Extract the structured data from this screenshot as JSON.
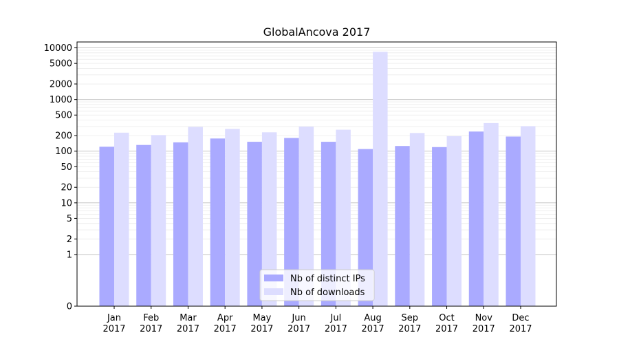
{
  "chart_data": {
    "type": "bar",
    "title": "GlobalAncova 2017",
    "xlabel": "",
    "ylabel": "",
    "scale": "symlog",
    "categories": [
      [
        "Jan",
        "2017"
      ],
      [
        "Feb",
        "2017"
      ],
      [
        "Mar",
        "2017"
      ],
      [
        "Apr",
        "2017"
      ],
      [
        "May",
        "2017"
      ],
      [
        "Jun",
        "2017"
      ],
      [
        "Jul",
        "2017"
      ],
      [
        "Aug",
        "2017"
      ],
      [
        "Sep",
        "2017"
      ],
      [
        "Oct",
        "2017"
      ],
      [
        "Nov",
        "2017"
      ],
      [
        "Dec",
        "2017"
      ]
    ],
    "series": [
      {
        "name": "Nb of distinct IPs",
        "color": "#aaaaff",
        "values": [
          122,
          132,
          148,
          176,
          152,
          180,
          152,
          110,
          126,
          120,
          240,
          192
        ]
      },
      {
        "name": "Nb of downloads",
        "color": "#ddddff",
        "values": [
          228,
          205,
          295,
          270,
          232,
          300,
          260,
          8400,
          225,
          195,
          350,
          305
        ]
      }
    ],
    "yticks": [
      0,
      1,
      2,
      5,
      10,
      20,
      50,
      100,
      200,
      500,
      1000,
      2000,
      5000,
      10000
    ],
    "ylim": [
      0,
      13000
    ],
    "grid": true,
    "legend_position": "bottom-center"
  }
}
